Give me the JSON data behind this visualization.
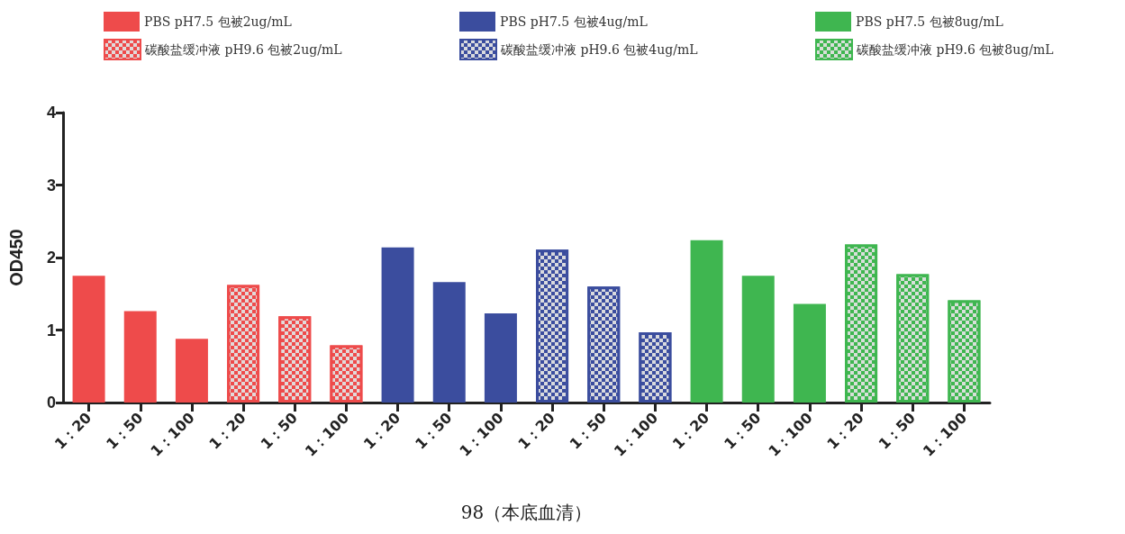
{
  "chart_data": {
    "type": "bar",
    "xlabel": "98（本底血清）",
    "ylabel": "OD450",
    "categories": [
      "1：20",
      "1：50",
      "1：100",
      "1：20",
      "1：50",
      "1：100",
      "1：20",
      "1：50",
      "1：100",
      "1：20",
      "1：50",
      "1：100",
      "1：20",
      "1：50",
      "1：100",
      "1：20",
      "1：50",
      "1：100"
    ],
    "series": [
      {
        "name": "PBS pH7.5 包被2ug/mL",
        "color": "#ee4b4b",
        "values": [
          1.75,
          1.26,
          0.88,
          null,
          null,
          null,
          null,
          null,
          null,
          null,
          null,
          null,
          null,
          null,
          null,
          null,
          null,
          null
        ]
      },
      {
        "name": "碳酸盐缓冲液 pH9.6 包被2ug/mL",
        "color": "#ee4b4b",
        "values": [
          null,
          null,
          null,
          1.62,
          1.19,
          0.79,
          null,
          null,
          null,
          null,
          null,
          null,
          null,
          null,
          null,
          null,
          null,
          null
        ]
      },
      {
        "name": "PBS pH7.5 包被4ug/mL",
        "color": "#3b4d9e",
        "values": [
          null,
          null,
          null,
          null,
          null,
          null,
          2.14,
          1.66,
          1.23,
          null,
          null,
          null,
          null,
          null,
          null,
          null,
          null,
          null
        ]
      },
      {
        "name": "碳酸盐缓冲液 pH9.6 包被4ug/mL",
        "color": "#3b4d9e",
        "values": [
          null,
          null,
          null,
          null,
          null,
          null,
          null,
          null,
          null,
          2.11,
          1.6,
          0.97,
          null,
          null,
          null,
          null,
          null,
          null
        ]
      },
      {
        "name": "PBS pH7.5 包被8ug/mL",
        "color": "#3fb650",
        "values": [
          null,
          null,
          null,
          null,
          null,
          null,
          null,
          null,
          null,
          null,
          null,
          null,
          2.24,
          1.75,
          1.36,
          null,
          null,
          null
        ]
      },
      {
        "name": "碳酸盐缓冲液 pH9.6 包被8ug/mL",
        "color": "#3fb650",
        "values": [
          null,
          null,
          null,
          null,
          null,
          null,
          null,
          null,
          null,
          null,
          null,
          null,
          null,
          null,
          null,
          2.18,
          1.77,
          1.41
        ]
      }
    ],
    "ylim": [
      0,
      4
    ],
    "yticks": [
      0,
      1,
      2,
      3,
      4
    ],
    "grid": false,
    "legend": "top"
  }
}
